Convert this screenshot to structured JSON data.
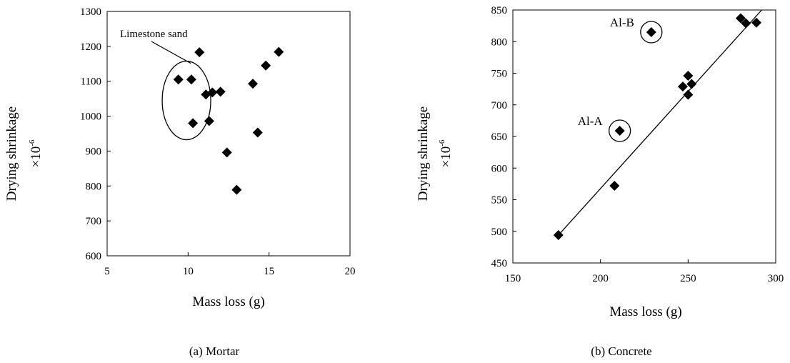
{
  "chart_data": [
    {
      "type": "scatter",
      "caption": "(a) Mortar",
      "xlabel": "Mass loss (g)",
      "ylabel": "Drying shrinkage",
      "ylabel_unit": "×10",
      "ylabel_unit_exp": "-6",
      "xlim": [
        5,
        20
      ],
      "ylim": [
        600,
        1300
      ],
      "xticks": [
        5,
        10,
        15,
        20
      ],
      "yticks": [
        600,
        700,
        800,
        900,
        1000,
        1100,
        1200,
        1300
      ],
      "grid": false,
      "marker": "diamond",
      "points": [
        {
          "x": 9.4,
          "y": 1105
        },
        {
          "x": 10.2,
          "y": 1105
        },
        {
          "x": 10.3,
          "y": 980
        },
        {
          "x": 10.7,
          "y": 1183
        },
        {
          "x": 11.1,
          "y": 1062
        },
        {
          "x": 11.3,
          "y": 986
        },
        {
          "x": 11.5,
          "y": 1068
        },
        {
          "x": 12.0,
          "y": 1070
        },
        {
          "x": 12.4,
          "y": 896
        },
        {
          "x": 13.0,
          "y": 789
        },
        {
          "x": 14.0,
          "y": 1093
        },
        {
          "x": 14.3,
          "y": 953
        },
        {
          "x": 14.8,
          "y": 1145
        },
        {
          "x": 15.6,
          "y": 1184
        }
      ],
      "annotation": {
        "text": "Limestone sand",
        "ellipse_center": {
          "x": 9.9,
          "y": 1045
        }
      }
    },
    {
      "type": "scatter",
      "caption": "(b) Concrete",
      "xlabel": "Mass loss (g)",
      "ylabel": "Drying shrinkage",
      "ylabel_unit": "×10",
      "ylabel_unit_exp": "-6",
      "xlim": [
        150,
        300
      ],
      "ylim": [
        450,
        850
      ],
      "xticks": [
        150,
        200,
        250,
        300
      ],
      "yticks": [
        450,
        500,
        550,
        600,
        650,
        700,
        750,
        800,
        850
      ],
      "grid": false,
      "marker": "diamond",
      "points": [
        {
          "x": 176,
          "y": 494
        },
        {
          "x": 208,
          "y": 572
        },
        {
          "x": 211,
          "y": 659
        },
        {
          "x": 229,
          "y": 815
        },
        {
          "x": 247,
          "y": 729
        },
        {
          "x": 250,
          "y": 716
        },
        {
          "x": 250,
          "y": 746
        },
        {
          "x": 252,
          "y": 733
        },
        {
          "x": 280,
          "y": 837
        },
        {
          "x": 283,
          "y": 829
        },
        {
          "x": 289,
          "y": 830
        }
      ],
      "fit_line": {
        "x0": 176,
        "y0": 494,
        "x1": 292,
        "y1": 850
      },
      "annotations": [
        {
          "text": "Al-A",
          "point": {
            "x": 211,
            "y": 659
          }
        },
        {
          "text": "Al-B",
          "point": {
            "x": 229,
            "y": 815
          }
        }
      ]
    }
  ],
  "colors": {
    "marker": "#000000",
    "axis": "#000000",
    "background": "#ffffff"
  }
}
